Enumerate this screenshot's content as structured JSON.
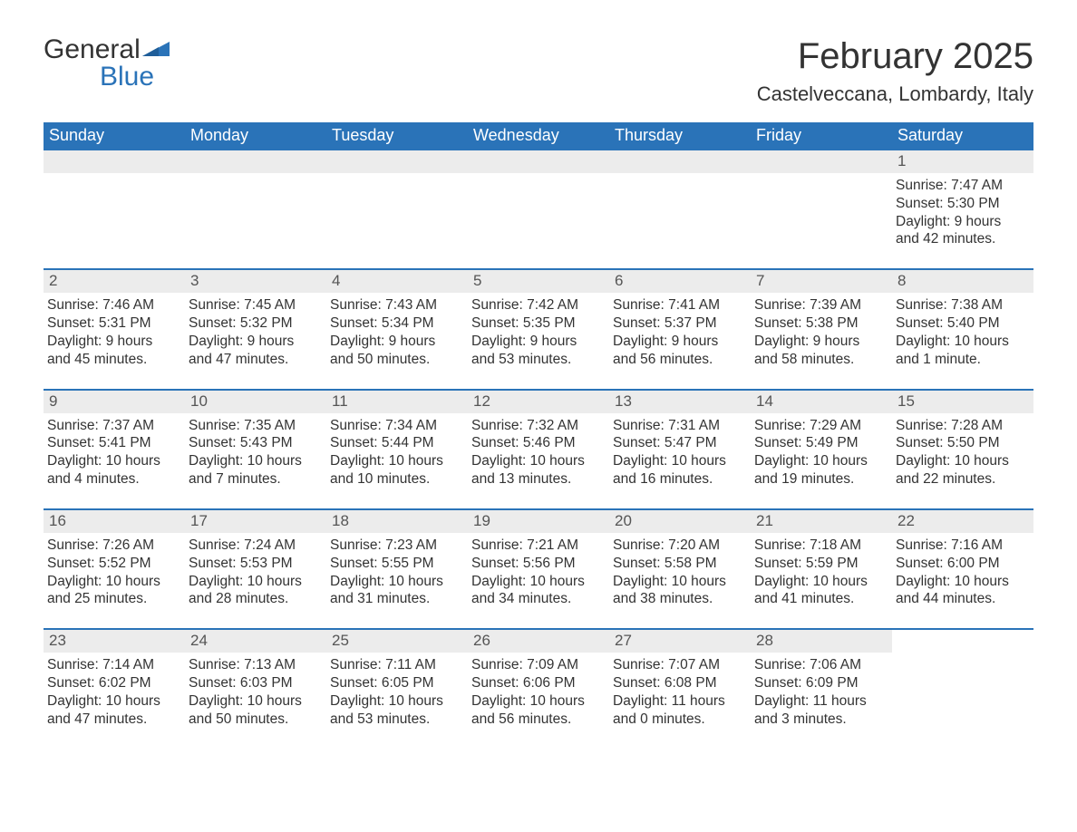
{
  "logo": {
    "general": "General",
    "blue": "Blue",
    "accent_color": "#2a73b8"
  },
  "header": {
    "month_title": "February 2025",
    "location": "Castelveccana, Lombardy, Italy"
  },
  "calendar": {
    "weekday_labels": [
      "Sunday",
      "Monday",
      "Tuesday",
      "Wednesday",
      "Thursday",
      "Friday",
      "Saturday"
    ],
    "colors": {
      "header_bg": "#2a73b8",
      "header_text": "#ffffff",
      "daynum_bg": "#ececec",
      "week_divider": "#2a73b8",
      "body_text": "#333333"
    },
    "weeks": [
      [
        {
          "empty": true
        },
        {
          "empty": true
        },
        {
          "empty": true
        },
        {
          "empty": true
        },
        {
          "empty": true
        },
        {
          "empty": true
        },
        {
          "n": "1",
          "sunrise": "Sunrise: 7:47 AM",
          "sunset": "Sunset: 5:30 PM",
          "daylight": "Daylight: 9 hours and 42 minutes."
        }
      ],
      [
        {
          "n": "2",
          "sunrise": "Sunrise: 7:46 AM",
          "sunset": "Sunset: 5:31 PM",
          "daylight": "Daylight: 9 hours and 45 minutes."
        },
        {
          "n": "3",
          "sunrise": "Sunrise: 7:45 AM",
          "sunset": "Sunset: 5:32 PM",
          "daylight": "Daylight: 9 hours and 47 minutes."
        },
        {
          "n": "4",
          "sunrise": "Sunrise: 7:43 AM",
          "sunset": "Sunset: 5:34 PM",
          "daylight": "Daylight: 9 hours and 50 minutes."
        },
        {
          "n": "5",
          "sunrise": "Sunrise: 7:42 AM",
          "sunset": "Sunset: 5:35 PM",
          "daylight": "Daylight: 9 hours and 53 minutes."
        },
        {
          "n": "6",
          "sunrise": "Sunrise: 7:41 AM",
          "sunset": "Sunset: 5:37 PM",
          "daylight": "Daylight: 9 hours and 56 minutes."
        },
        {
          "n": "7",
          "sunrise": "Sunrise: 7:39 AM",
          "sunset": "Sunset: 5:38 PM",
          "daylight": "Daylight: 9 hours and 58 minutes."
        },
        {
          "n": "8",
          "sunrise": "Sunrise: 7:38 AM",
          "sunset": "Sunset: 5:40 PM",
          "daylight": "Daylight: 10 hours and 1 minute."
        }
      ],
      [
        {
          "n": "9",
          "sunrise": "Sunrise: 7:37 AM",
          "sunset": "Sunset: 5:41 PM",
          "daylight": "Daylight: 10 hours and 4 minutes."
        },
        {
          "n": "10",
          "sunrise": "Sunrise: 7:35 AM",
          "sunset": "Sunset: 5:43 PM",
          "daylight": "Daylight: 10 hours and 7 minutes."
        },
        {
          "n": "11",
          "sunrise": "Sunrise: 7:34 AM",
          "sunset": "Sunset: 5:44 PM",
          "daylight": "Daylight: 10 hours and 10 minutes."
        },
        {
          "n": "12",
          "sunrise": "Sunrise: 7:32 AM",
          "sunset": "Sunset: 5:46 PM",
          "daylight": "Daylight: 10 hours and 13 minutes."
        },
        {
          "n": "13",
          "sunrise": "Sunrise: 7:31 AM",
          "sunset": "Sunset: 5:47 PM",
          "daylight": "Daylight: 10 hours and 16 minutes."
        },
        {
          "n": "14",
          "sunrise": "Sunrise: 7:29 AM",
          "sunset": "Sunset: 5:49 PM",
          "daylight": "Daylight: 10 hours and 19 minutes."
        },
        {
          "n": "15",
          "sunrise": "Sunrise: 7:28 AM",
          "sunset": "Sunset: 5:50 PM",
          "daylight": "Daylight: 10 hours and 22 minutes."
        }
      ],
      [
        {
          "n": "16",
          "sunrise": "Sunrise: 7:26 AM",
          "sunset": "Sunset: 5:52 PM",
          "daylight": "Daylight: 10 hours and 25 minutes."
        },
        {
          "n": "17",
          "sunrise": "Sunrise: 7:24 AM",
          "sunset": "Sunset: 5:53 PM",
          "daylight": "Daylight: 10 hours and 28 minutes."
        },
        {
          "n": "18",
          "sunrise": "Sunrise: 7:23 AM",
          "sunset": "Sunset: 5:55 PM",
          "daylight": "Daylight: 10 hours and 31 minutes."
        },
        {
          "n": "19",
          "sunrise": "Sunrise: 7:21 AM",
          "sunset": "Sunset: 5:56 PM",
          "daylight": "Daylight: 10 hours and 34 minutes."
        },
        {
          "n": "20",
          "sunrise": "Sunrise: 7:20 AM",
          "sunset": "Sunset: 5:58 PM",
          "daylight": "Daylight: 10 hours and 38 minutes."
        },
        {
          "n": "21",
          "sunrise": "Sunrise: 7:18 AM",
          "sunset": "Sunset: 5:59 PM",
          "daylight": "Daylight: 10 hours and 41 minutes."
        },
        {
          "n": "22",
          "sunrise": "Sunrise: 7:16 AM",
          "sunset": "Sunset: 6:00 PM",
          "daylight": "Daylight: 10 hours and 44 minutes."
        }
      ],
      [
        {
          "n": "23",
          "sunrise": "Sunrise: 7:14 AM",
          "sunset": "Sunset: 6:02 PM",
          "daylight": "Daylight: 10 hours and 47 minutes."
        },
        {
          "n": "24",
          "sunrise": "Sunrise: 7:13 AM",
          "sunset": "Sunset: 6:03 PM",
          "daylight": "Daylight: 10 hours and 50 minutes."
        },
        {
          "n": "25",
          "sunrise": "Sunrise: 7:11 AM",
          "sunset": "Sunset: 6:05 PM",
          "daylight": "Daylight: 10 hours and 53 minutes."
        },
        {
          "n": "26",
          "sunrise": "Sunrise: 7:09 AM",
          "sunset": "Sunset: 6:06 PM",
          "daylight": "Daylight: 10 hours and 56 minutes."
        },
        {
          "n": "27",
          "sunrise": "Sunrise: 7:07 AM",
          "sunset": "Sunset: 6:08 PM",
          "daylight": "Daylight: 11 hours and 0 minutes."
        },
        {
          "n": "28",
          "sunrise": "Sunrise: 7:06 AM",
          "sunset": "Sunset: 6:09 PM",
          "daylight": "Daylight: 11 hours and 3 minutes."
        },
        {
          "empty": true,
          "no_bg": true
        }
      ]
    ]
  }
}
